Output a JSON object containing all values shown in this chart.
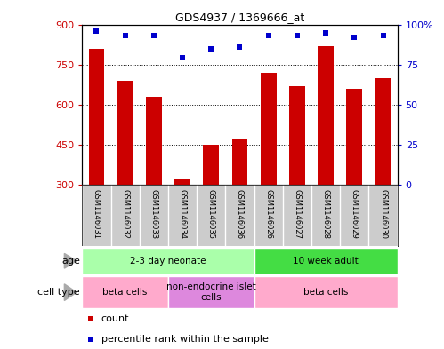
{
  "title": "GDS4937 / 1369666_at",
  "samples": [
    "GSM1146031",
    "GSM1146032",
    "GSM1146033",
    "GSM1146034",
    "GSM1146035",
    "GSM1146036",
    "GSM1146026",
    "GSM1146027",
    "GSM1146028",
    "GSM1146029",
    "GSM1146030"
  ],
  "counts": [
    810,
    690,
    630,
    320,
    450,
    470,
    720,
    670,
    820,
    660,
    700
  ],
  "percentile_ranks": [
    96,
    93,
    93,
    79,
    85,
    86,
    93,
    93,
    95,
    92,
    93
  ],
  "ymin": 300,
  "ymax": 900,
  "yticks": [
    300,
    450,
    600,
    750,
    900
  ],
  "ytick_labels": [
    "300",
    "450",
    "600",
    "750",
    "900"
  ],
  "y2min": 0,
  "y2max": 100,
  "y2ticks": [
    0,
    25,
    50,
    75,
    100
  ],
  "y2tick_labels": [
    "0",
    "25",
    "50",
    "75",
    "100%"
  ],
  "bar_color": "#cc0000",
  "dot_color": "#0000cc",
  "bar_width": 0.55,
  "age_groups": [
    {
      "label": "2-3 day neonate",
      "start": 0,
      "end": 6,
      "color": "#aaffaa"
    },
    {
      "label": "10 week adult",
      "start": 6,
      "end": 11,
      "color": "#44dd44"
    }
  ],
  "cell_type_groups": [
    {
      "label": "beta cells",
      "start": 0,
      "end": 3,
      "color": "#ffaacc"
    },
    {
      "label": "non-endocrine islet\ncells",
      "start": 3,
      "end": 6,
      "color": "#dd88dd"
    },
    {
      "label": "beta cells",
      "start": 6,
      "end": 11,
      "color": "#ffaacc"
    }
  ],
  "legend_items": [
    {
      "color": "#cc0000",
      "label": "count"
    },
    {
      "color": "#0000cc",
      "label": "percentile rank within the sample"
    }
  ],
  "tick_color_left": "#cc0000",
  "tick_color_right": "#0000cc",
  "label_area_color": "#cccccc"
}
